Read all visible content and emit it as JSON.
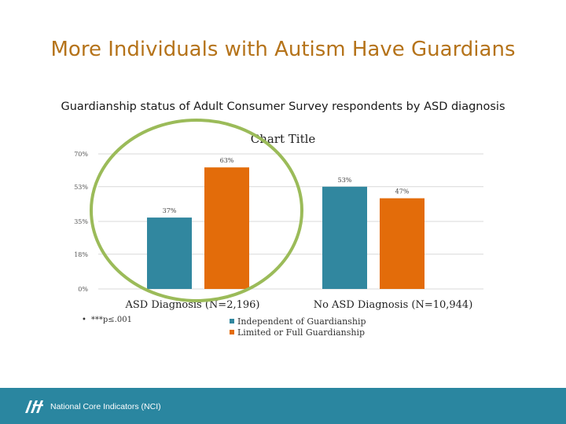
{
  "slide_title": "More Individuals with Autism Have Guardians",
  "subtitle": "Guardianship status of Adult Consumer Survey respondents by ASD diagnosis",
  "footnote": "***p≤.001",
  "footer_text": "National Core Indicators (NCI)",
  "colors": {
    "title": "#b5731a",
    "series_independent": "#31879f",
    "series_limited": "#e36c0a",
    "highlight_ellipse": "#9bbb59",
    "footer": "#2a86a0"
  },
  "icons": {
    "bullet": "•",
    "footer_logo": "nci-logo-icon"
  },
  "chart_data": {
    "type": "bar",
    "title": "Chart Title",
    "categories": [
      "ASD Diagnosis (N=2,196)",
      "No ASD Diagnosis  (N=10,944)"
    ],
    "series": [
      {
        "name": "Independent of Guardianship",
        "values": [
          37,
          53
        ],
        "labels": [
          "37%",
          "53%"
        ]
      },
      {
        "name": "Limited or Full Guardianship",
        "values": [
          63,
          47
        ],
        "labels": [
          "63%",
          "47%"
        ]
      }
    ],
    "ylim": [
      0,
      70
    ],
    "yticks": [
      0,
      18,
      35,
      53,
      70
    ],
    "ytick_labels": [
      "0%",
      "18%",
      "35%",
      "53%",
      "70%"
    ],
    "grid": true,
    "legend_position": "bottom",
    "annotation": "ellipse highlighting ASD Diagnosis group"
  }
}
